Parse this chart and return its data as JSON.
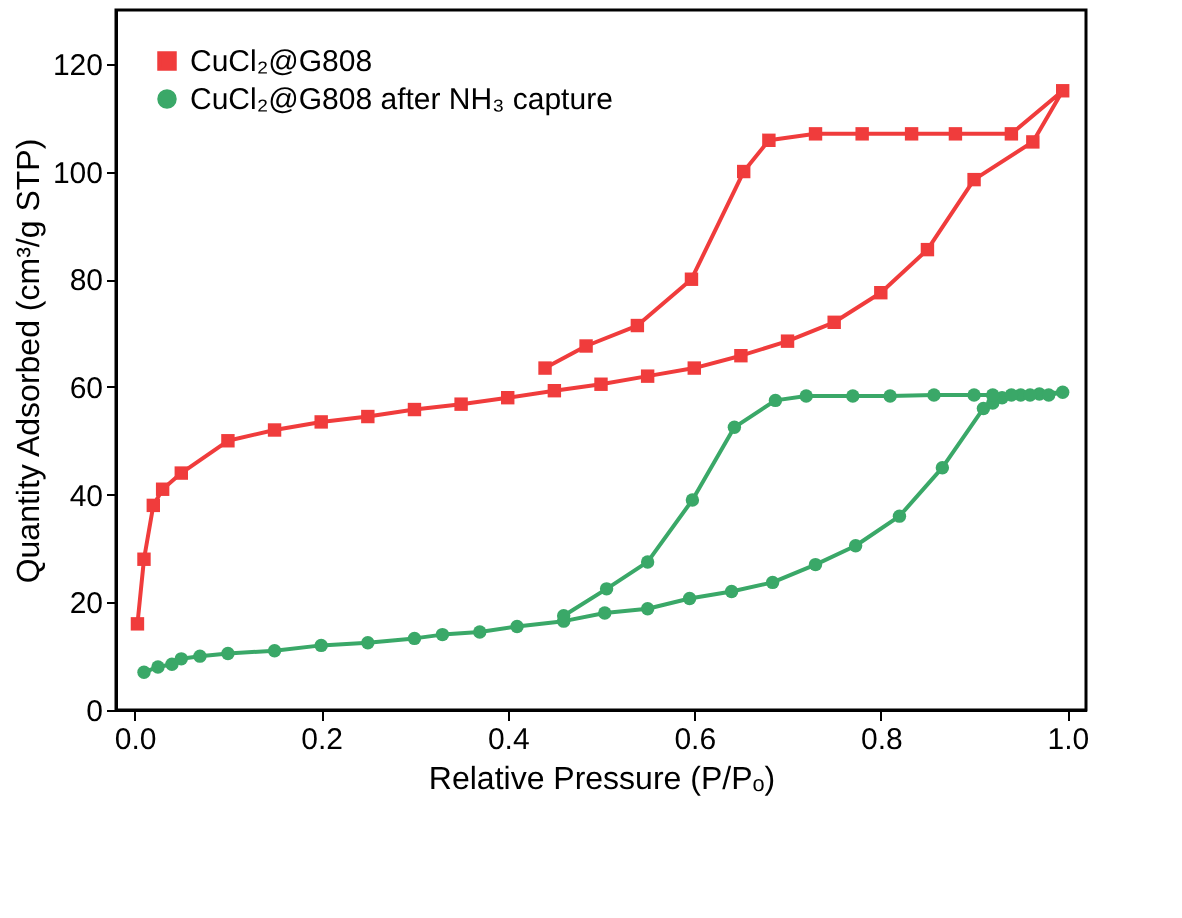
{
  "chart_data": {
    "type": "line",
    "xlabel": "Relative Pressure (P/Pₒ)",
    "ylabel": "Quantity Adsorbed (cm³/g STP)",
    "xlim": [
      -0.02,
      1.02
    ],
    "ylim": [
      0,
      130
    ],
    "xticks": [
      {
        "value": 0,
        "label": "0.0"
      },
      0.2,
      0.4,
      0.6,
      0.8,
      {
        "value": 1,
        "label": "1.0"
      }
    ],
    "yticks": [
      0,
      20,
      40,
      60,
      80,
      100,
      120
    ],
    "grid": false,
    "legend": "top left",
    "line_style": "solid",
    "series": [
      {
        "name": "CuCl₂@G808",
        "color": "#f03c3c",
        "marker": "square",
        "x": [
          0.003,
          0.01,
          0.02,
          0.03,
          0.05,
          0.1,
          0.15,
          0.2,
          0.25,
          0.3,
          0.35,
          0.4,
          0.45,
          0.5,
          0.55,
          0.6,
          0.65,
          0.7,
          0.75,
          0.8,
          0.85,
          0.9,
          0.963,
          0.995,
          0.94,
          0.88,
          0.833,
          0.78,
          0.73,
          0.68,
          0.653,
          0.597,
          0.539,
          0.484,
          0.44
        ],
        "values": [
          16,
          28,
          38,
          41,
          44,
          50,
          52,
          53.5,
          54.5,
          55.8,
          56.8,
          58,
          59.3,
          60.5,
          62,
          63.5,
          65.8,
          68.5,
          72,
          77.5,
          85.5,
          98.5,
          105.5,
          115,
          107,
          107,
          107,
          107,
          107,
          105.8,
          100,
          80,
          71.4,
          67.6,
          63.5
        ]
      },
      {
        "name": "CuCl₂@G808 after NH₃ capture",
        "color": "#3aa868",
        "marker": "circle",
        "x": [
          0.01,
          0.025,
          0.04,
          0.05,
          0.07,
          0.1,
          0.15,
          0.2,
          0.25,
          0.3,
          0.33,
          0.37,
          0.41,
          0.46,
          0.504,
          0.55,
          0.595,
          0.64,
          0.684,
          0.73,
          0.773,
          0.82,
          0.866,
          0.91,
          0.92,
          0.93,
          0.95,
          0.97,
          0.995,
          0.98,
          0.96,
          0.94,
          0.92,
          0.9,
          0.857,
          0.81,
          0.77,
          0.72,
          0.687,
          0.643,
          0.598,
          0.55,
          0.506,
          0.46
        ],
        "values": [
          7,
          8,
          8.5,
          9.5,
          10,
          10.5,
          11,
          12,
          12.5,
          13.3,
          14,
          14.5,
          15.5,
          16.5,
          18,
          18.8,
          20.7,
          22,
          23.7,
          27,
          30.5,
          36,
          45,
          56,
          57,
          58,
          58.5,
          58.7,
          59,
          58.5,
          58.5,
          58.5,
          58.5,
          58.5,
          58.5,
          58.3,
          58.3,
          58.3,
          57.5,
          52.5,
          39,
          27.5,
          22.5,
          17.5
        ]
      }
    ]
  }
}
